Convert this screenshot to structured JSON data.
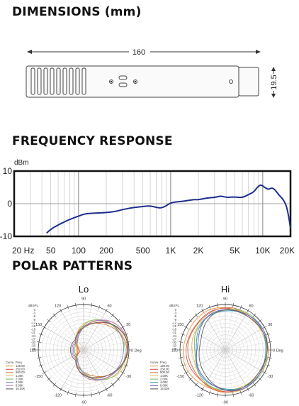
{
  "dimensions": {
    "heading": "DIMENSIONS (mm)",
    "length_label": "160",
    "diameter_label": "19.5"
  },
  "frequency": {
    "heading": "FREQUENCY RESPONSE",
    "unit_label": "dBm",
    "y_ticks": [
      "10",
      "0",
      "-10"
    ],
    "x_ticks": [
      "20 Hz",
      "50",
      "100",
      "200",
      "500",
      "1K",
      "2K",
      "5K",
      "10K",
      "20K"
    ]
  },
  "polar": {
    "heading": "POLAR PATTERNS",
    "charts": [
      {
        "title": "Lo",
        "scale_header": "dBSPL",
        "scale_ticks": [
          "0",
          "-3",
          "-6",
          "-9",
          "-12",
          "-15",
          "-18",
          "-21",
          "-24",
          "-27",
          "-30",
          "-33",
          "-36"
        ],
        "angle_labels": [
          "90",
          "60",
          "30",
          "0 Deg",
          "-30",
          "-60",
          "-90",
          "-120",
          "-150",
          "180",
          "150",
          "120"
        ],
        "legend_header": [
          "Curve",
          "Freq"
        ],
        "legend": [
          {
            "freq": "125.00",
            "color": "#e8a040"
          },
          {
            "freq": "250.00",
            "color": "#e05050"
          },
          {
            "freq": "500.00",
            "color": "#d07840"
          },
          {
            "freq": "1.00K",
            "color": "#e8c060"
          },
          {
            "freq": "2.00K",
            "color": "#80c060"
          },
          {
            "freq": "4.00K",
            "color": "#8080c0"
          },
          {
            "freq": "8.00K",
            "color": "#c080c0"
          },
          {
            "freq": "16.00K",
            "color": "#606060"
          }
        ]
      },
      {
        "title": "Hi",
        "scale_header": "dBSPL",
        "scale_ticks": [
          "0",
          "-3",
          "-6",
          "-9",
          "-12",
          "-15",
          "-18",
          "-21",
          "-24",
          "-27",
          "-30",
          "-33",
          "-36"
        ],
        "angle_labels": [
          "90",
          "60",
          "30",
          "0 Deg",
          "-30",
          "-60",
          "-90",
          "-120",
          "-150",
          "180",
          "150",
          "120"
        ],
        "legend_header": [
          "Curve",
          "Freq"
        ],
        "legend": [
          {
            "freq": "125.00",
            "color": "#e8a040"
          },
          {
            "freq": "250.00",
            "color": "#e05050"
          },
          {
            "freq": "500.00",
            "color": "#d07840"
          },
          {
            "freq": "1.00K",
            "color": "#e8c060"
          },
          {
            "freq": "2.00K",
            "color": "#80c060"
          },
          {
            "freq": "4.00K",
            "color": "#40a0c0"
          },
          {
            "freq": "8.00K",
            "color": "#6060c0"
          },
          {
            "freq": "16.00K",
            "color": "#606060"
          }
        ]
      }
    ]
  },
  "chart_data": {
    "type": "line",
    "x_scale": "log",
    "xlim": [
      20,
      20000
    ],
    "ylim": [
      -10,
      10
    ],
    "ylabel": "dBm",
    "grid": true,
    "series": [
      {
        "color": "#1e2e8c",
        "x": [
          45,
          50,
          60,
          70,
          80,
          90,
          100,
          120,
          150,
          200,
          250,
          300,
          400,
          500,
          600,
          700,
          800,
          900,
          1000,
          1200,
          1500,
          1800,
          2000,
          2500,
          3000,
          3500,
          4000,
          5000,
          6000,
          7000,
          8000,
          8700,
          9500,
          10500,
          11500,
          12500,
          13500,
          15000,
          16500,
          18000,
          19000,
          20000
        ],
        "y": [
          -9.0,
          -7.8,
          -6.5,
          -5.6,
          -4.8,
          -4.3,
          -3.8,
          -3.0,
          -2.9,
          -2.7,
          -2.4,
          -1.8,
          -1.1,
          -0.9,
          -0.6,
          -1.2,
          -1.3,
          -0.6,
          0.3,
          0.6,
          0.9,
          1.3,
          1.2,
          1.8,
          1.9,
          2.4,
          1.9,
          2.1,
          1.8,
          2.8,
          3.6,
          5.0,
          5.9,
          5.0,
          4.3,
          4.9,
          4.4,
          2.6,
          1.5,
          -0.5,
          -3.5,
          -7.5
        ]
      }
    ]
  }
}
